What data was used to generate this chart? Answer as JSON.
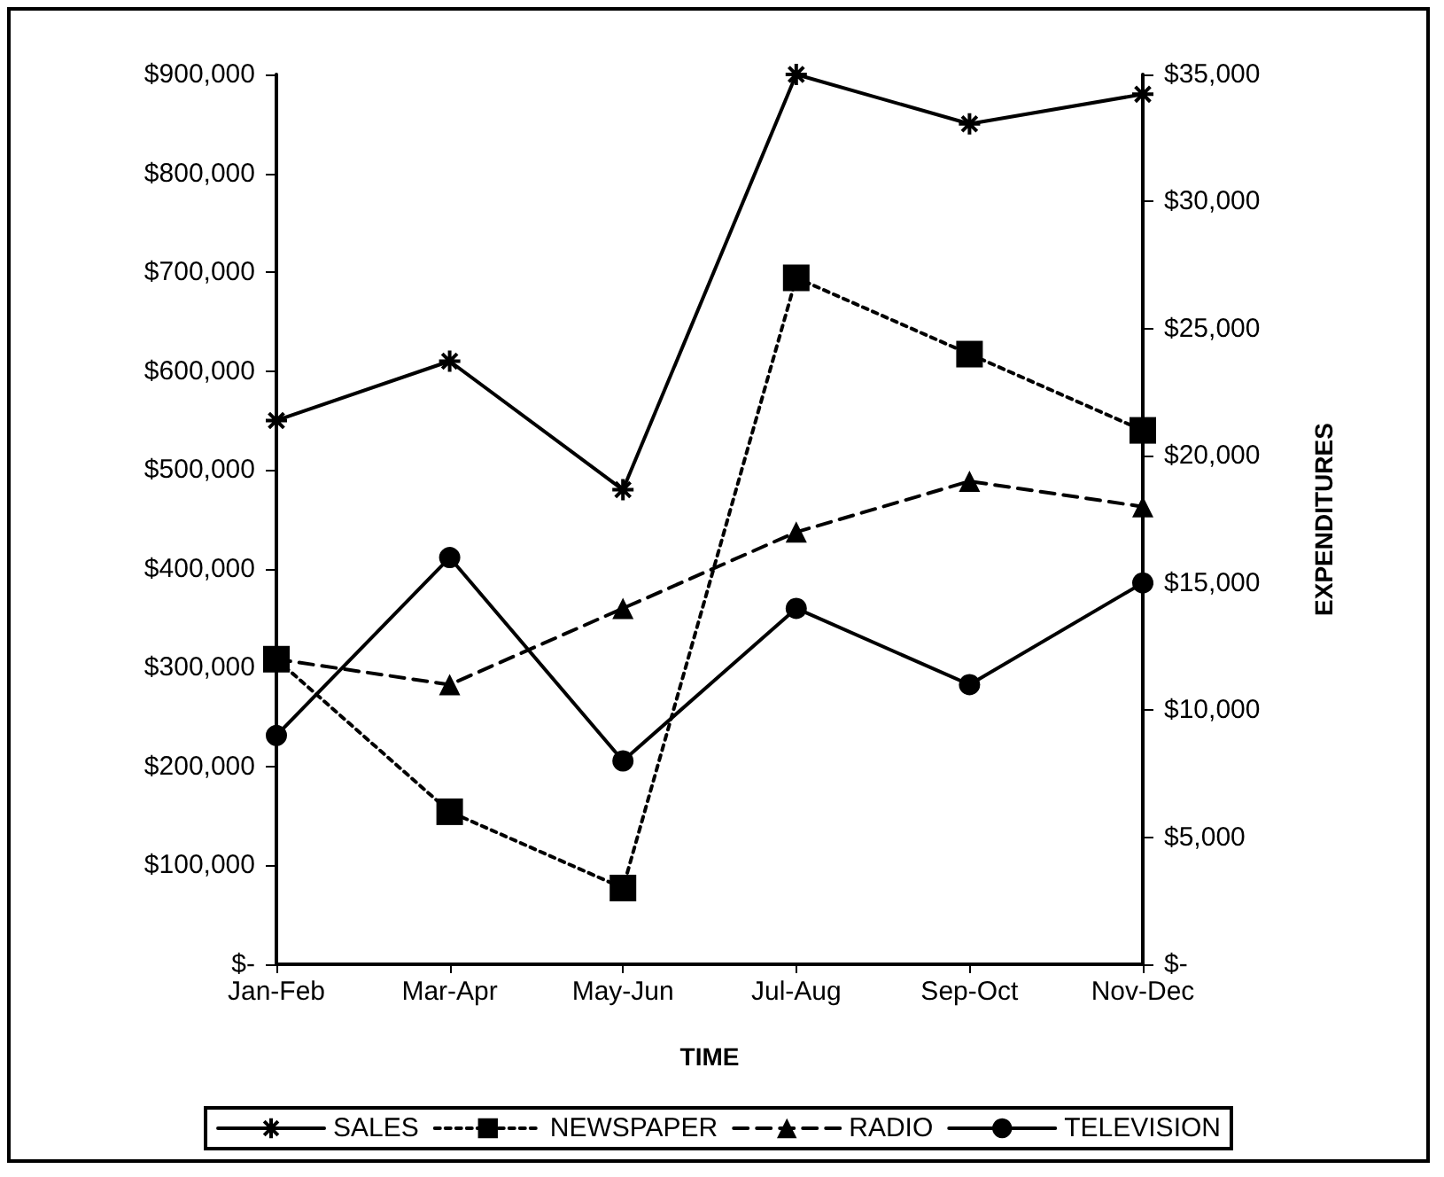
{
  "chart_data": {
    "type": "line",
    "xlabel": "TIME",
    "y2label": "EXPENDITURES",
    "categories": [
      "Jan-Feb",
      "Mar-Apr",
      "May-Jun",
      "Jul-Aug",
      "Sep-Oct",
      "Nov-Dec"
    ],
    "series": [
      {
        "name": "SALES",
        "color": "#000000",
        "values": [
          550000,
          610000,
          480000,
          900000,
          850000,
          880000
        ],
        "marker": "cross",
        "line_style": "solid"
      },
      {
        "name": "NEWSPAPER",
        "color": "#000000",
        "values": [
          12000,
          6000,
          3000,
          27000,
          24000,
          21000
        ],
        "axis": "y2",
        "marker": "square",
        "line_style": "dotted"
      },
      {
        "name": "RADIO",
        "color": "#000000",
        "values": [
          12000,
          11000,
          14000,
          17000,
          19000,
          18000
        ],
        "axis": "y2",
        "marker": "triangle",
        "line_style": "dashed"
      },
      {
        "name": "TELEVISION",
        "color": "#000000",
        "values": [
          9000,
          16000,
          8000,
          14000,
          11000,
          15000
        ],
        "axis": "y2",
        "marker": "circle",
        "line_style": "solid"
      }
    ],
    "ylim": [
      0,
      900000
    ],
    "yticks": [
      {
        "value": 0,
        "label": "$-"
      },
      {
        "value": 100000,
        "label": "$100,000"
      },
      {
        "value": 200000,
        "label": "$200,000"
      },
      {
        "value": 300000,
        "label": "$300,000"
      },
      {
        "value": 400000,
        "label": "$400,000"
      },
      {
        "value": 500000,
        "label": "$500,000"
      },
      {
        "value": 600000,
        "label": "$600,000"
      },
      {
        "value": 700000,
        "label": "$700,000"
      },
      {
        "value": 800000,
        "label": "$800,000"
      },
      {
        "value": 900000,
        "label": "$900,000"
      }
    ],
    "y2lim": [
      0,
      35000
    ],
    "y2ticks": [
      {
        "value": 0,
        "label": "$-"
      },
      {
        "value": 5000,
        "label": "$5,000"
      },
      {
        "value": 10000,
        "label": "$10,000"
      },
      {
        "value": 15000,
        "label": "$15,000"
      },
      {
        "value": 20000,
        "label": "$20,000"
      },
      {
        "value": 25000,
        "label": "$25,000"
      },
      {
        "value": 30000,
        "label": "$30,000"
      },
      {
        "value": 35000,
        "label": "$35,000"
      }
    ],
    "grid": false,
    "legend": "bottom"
  }
}
